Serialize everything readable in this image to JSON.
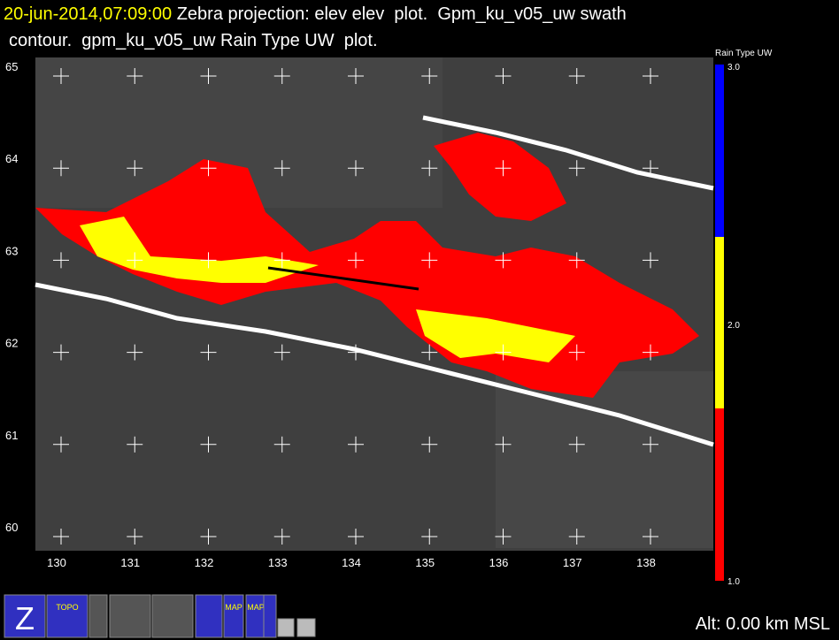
{
  "header": {
    "timestamp": "20-jun-2014,07:09:00",
    "line1": " Zebra projection: elev elev  plot.  Gpm_ku_v05_uw swath",
    "line2": "contour.  gpm_ku_v05_uw Rain Type UW  plot."
  },
  "map": {
    "y_labels": [
      "65",
      "64",
      "63",
      "62",
      "61",
      "60"
    ],
    "x_labels": [
      "130",
      "131",
      "132",
      "133",
      "134",
      "135",
      "136",
      "137",
      "138"
    ]
  },
  "colorbar": {
    "title": "Rain Type UW",
    "labels": [
      "3.0",
      "2.0",
      "1.0"
    ]
  },
  "toolbar": {
    "icons": [
      "Z",
      "TOPO",
      "MAP",
      "MAP"
    ]
  },
  "status": {
    "altitude": "Alt: 0.00 km MSL"
  }
}
